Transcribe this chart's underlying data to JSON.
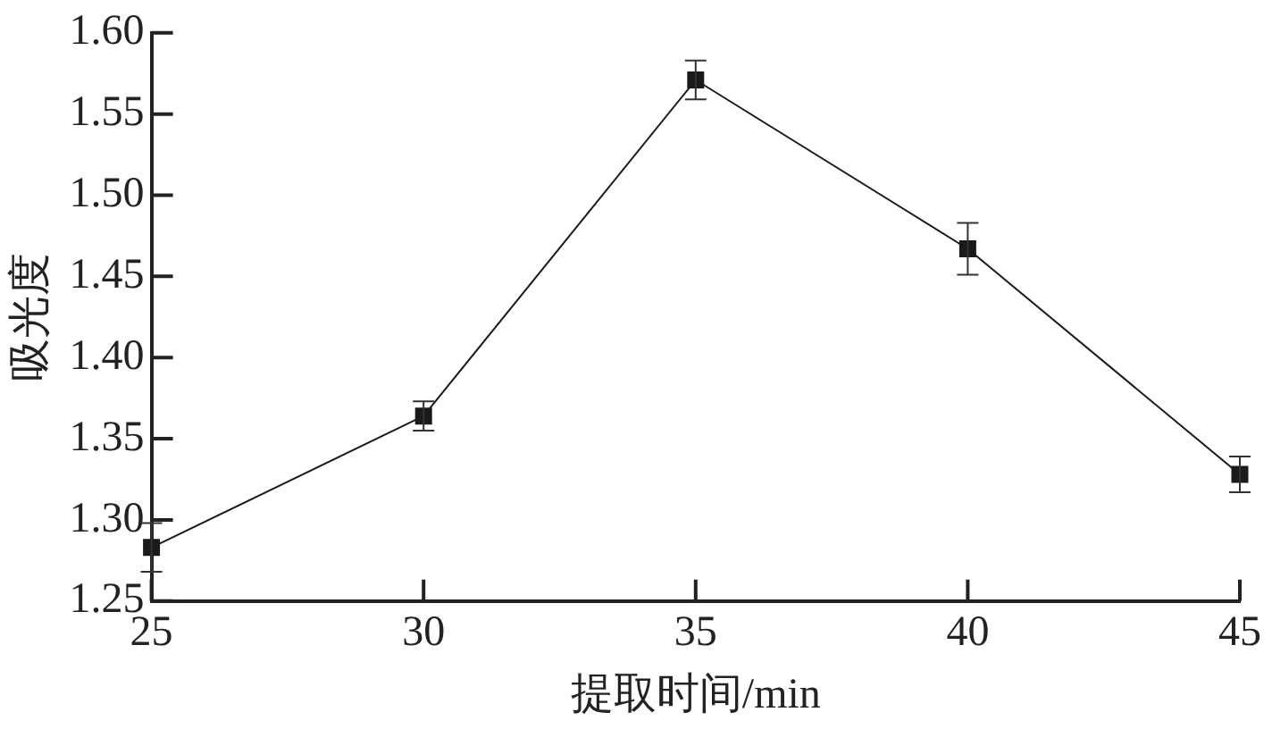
{
  "chart_data": {
    "type": "line",
    "xlabel": "提取时间/min",
    "ylabel": "吸光度",
    "x": [
      25,
      30,
      35,
      40,
      45
    ],
    "series": [
      {
        "color": "#1a1a1a",
        "values": [
          1.283,
          1.364,
          1.571,
          1.467,
          1.328
        ],
        "errors": [
          0.015,
          0.009,
          0.012,
          0.016,
          0.011
        ]
      }
    ],
    "xlim": [
      25,
      45
    ],
    "xticks": [
      25,
      30,
      35,
      40,
      45
    ],
    "ylim": [
      1.25,
      1.6
    ],
    "yticks": [
      1.25,
      {
        "value": 1.3,
        "label": "1.30"
      },
      1.35,
      {
        "value": 1.4,
        "label": "1.40"
      },
      1.45,
      {
        "value": 1.5,
        "label": "1.50"
      },
      1.55,
      {
        "value": 1.6,
        "label": "1.60"
      }
    ],
    "grid": false,
    "legend": false,
    "marker": "square",
    "line_style": "solid"
  }
}
